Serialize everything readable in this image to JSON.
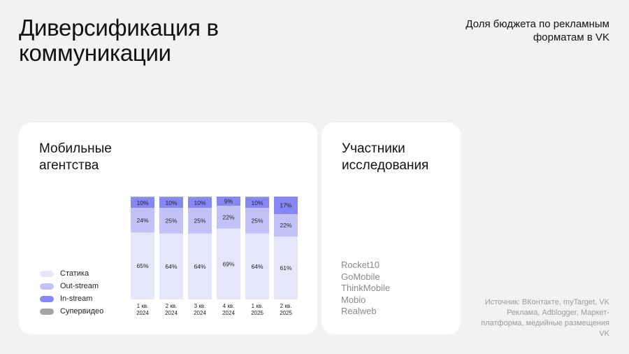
{
  "header": {
    "title": "Диверсификация в коммуникации",
    "subtitle": "Доля бюджета по рекламным форматам в VK"
  },
  "agencies_card": {
    "title": "Мобильные агентства"
  },
  "participants_card": {
    "title": "Участники исследования",
    "items": [
      "Rocket10",
      "GoMobile",
      "ThinkMobile",
      "Mobio",
      "Realweb"
    ]
  },
  "source": "Источник: ВКонтакте, myTarget, VK Реклама, Adblogger, Маркет-платформа, медийные размещения VK",
  "colors": {
    "statika": "#e6e6fb",
    "outstream": "#c1c2f8",
    "instream": "#8587f4",
    "supervideo": "#a5a5a5"
  },
  "chart_data": {
    "type": "bar",
    "stacked": true,
    "categories": [
      [
        "1 кв.",
        "2024"
      ],
      [
        "2 кв.",
        "2024"
      ],
      [
        "3 кв.",
        "2024"
      ],
      [
        "4 кв.",
        "2024"
      ],
      [
        "1 кв.",
        "2025"
      ],
      [
        "2 кв.",
        "2025"
      ]
    ],
    "series": [
      {
        "name": "Статика",
        "color": "#e6e6fb",
        "values": [
          65,
          64,
          64,
          69,
          64,
          61
        ],
        "labels": [
          "65%",
          "64%",
          "64%",
          "69%",
          "64%",
          "61%"
        ]
      },
      {
        "name": "Out-stream",
        "color": "#c1c2f8",
        "values": [
          24,
          25,
          25,
          22,
          25,
          22
        ],
        "labels": [
          "24%",
          "25%",
          "25%",
          "22%",
          "25%",
          "22%"
        ]
      },
      {
        "name": "In-stream",
        "color": "#8587f4",
        "values": [
          10,
          10,
          10,
          9,
          10,
          17
        ],
        "labels": [
          "10%",
          "10%",
          "10%",
          "9%",
          "10%",
          "17%"
        ]
      },
      {
        "name": "Супервидео",
        "color": "#a5a5a5",
        "values": [
          1,
          1,
          1,
          0,
          1,
          0
        ],
        "labels": [
          "",
          "",
          "",
          "",
          "",
          ""
        ]
      }
    ],
    "ylim": [
      0,
      100
    ],
    "legend_position": "left"
  }
}
